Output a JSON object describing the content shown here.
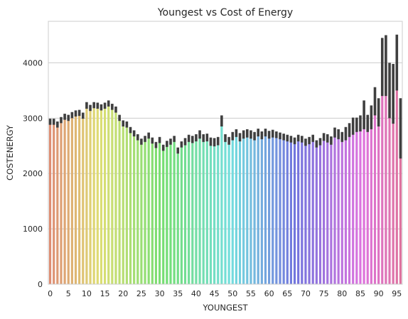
{
  "chart_data": {
    "type": "bar",
    "title": "Youngest vs Cost of Energy",
    "xlabel": "YOUNGEST",
    "ylabel": "COSTENERGY",
    "categories": [
      0,
      1,
      2,
      3,
      4,
      5,
      6,
      7,
      8,
      9,
      10,
      11,
      12,
      13,
      14,
      15,
      16,
      17,
      18,
      19,
      20,
      21,
      22,
      23,
      24,
      25,
      26,
      27,
      28,
      29,
      30,
      31,
      32,
      33,
      34,
      35,
      36,
      37,
      38,
      39,
      40,
      41,
      42,
      43,
      44,
      45,
      46,
      47,
      48,
      49,
      50,
      51,
      52,
      53,
      54,
      55,
      56,
      57,
      58,
      59,
      60,
      61,
      62,
      63,
      64,
      65,
      66,
      67,
      68,
      69,
      70,
      71,
      72,
      73,
      74,
      75,
      76,
      77,
      78,
      79,
      80,
      81,
      82,
      83,
      84,
      85,
      86,
      87,
      88,
      89,
      90,
      91,
      92,
      93,
      94,
      95,
      96
    ],
    "x_tick_labels": [
      "0",
      "5",
      "10",
      "15",
      "20",
      "25",
      "30",
      "35",
      "40",
      "45",
      "50",
      "55",
      "60",
      "65",
      "70",
      "75",
      "80",
      "85",
      "90",
      "95"
    ],
    "values": [
      2930,
      2930,
      2880,
      2960,
      3020,
      3000,
      3050,
      3080,
      3090,
      3040,
      3220,
      3180,
      3230,
      3220,
      3190,
      3220,
      3260,
      3200,
      3150,
      3000,
      2900,
      2880,
      2780,
      2720,
      2650,
      2570,
      2620,
      2680,
      2590,
      2510,
      2600,
      2460,
      2530,
      2570,
      2620,
      2410,
      2520,
      2570,
      2630,
      2610,
      2640,
      2700,
      2640,
      2650,
      2570,
      2560,
      2580,
      2950,
      2640,
      2590,
      2670,
      2730,
      2650,
      2700,
      2720,
      2700,
      2670,
      2740,
      2690,
      2740,
      2700,
      2720,
      2700,
      2680,
      2660,
      2640,
      2620,
      2590,
      2640,
      2620,
      2560,
      2590,
      2630,
      2530,
      2570,
      2660,
      2630,
      2590,
      2740,
      2710,
      2660,
      2720,
      2780,
      2860,
      2900,
      2910,
      3050,
      2900,
      3020,
      3300,
      3100,
      3920,
      3800,
      3500,
      3300,
      4100,
      2800
    ],
    "error_low": [
      2880,
      2880,
      2830,
      2910,
      2970,
      2950,
      3000,
      3030,
      3040,
      2990,
      3170,
      3130,
      3180,
      3170,
      3140,
      3170,
      3210,
      3150,
      3100,
      2950,
      2850,
      2830,
      2730,
      2670,
      2600,
      2520,
      2570,
      2630,
      2540,
      2460,
      2550,
      2410,
      2480,
      2520,
      2570,
      2360,
      2470,
      2510,
      2570,
      2550,
      2580,
      2630,
      2570,
      2580,
      2500,
      2490,
      2510,
      2850,
      2570,
      2520,
      2600,
      2660,
      2580,
      2630,
      2650,
      2630,
      2600,
      2670,
      2620,
      2670,
      2630,
      2650,
      2640,
      2620,
      2600,
      2580,
      2560,
      2530,
      2580,
      2560,
      2500,
      2530,
      2570,
      2470,
      2510,
      2590,
      2560,
      2520,
      2650,
      2620,
      2570,
      2600,
      2660,
      2700,
      2750,
      2760,
      2800,
      2750,
      2800,
      3050,
      2850,
      3400,
      3400,
      3000,
      2900,
      3500,
      2270
    ],
    "error_high": [
      2990,
      2990,
      2940,
      3020,
      3080,
      3060,
      3110,
      3140,
      3150,
      3100,
      3290,
      3240,
      3290,
      3280,
      3250,
      3280,
      3320,
      3260,
      3210,
      3060,
      2960,
      2940,
      2840,
      2780,
      2710,
      2630,
      2680,
      2740,
      2650,
      2570,
      2660,
      2520,
      2590,
      2630,
      2680,
      2470,
      2580,
      2640,
      2700,
      2680,
      2710,
      2780,
      2710,
      2720,
      2650,
      2640,
      2660,
      3050,
      2710,
      2660,
      2750,
      2800,
      2730,
      2780,
      2800,
      2780,
      2750,
      2810,
      2760,
      2810,
      2770,
      2790,
      2760,
      2740,
      2720,
      2700,
      2680,
      2650,
      2700,
      2680,
      2630,
      2660,
      2700,
      2600,
      2640,
      2730,
      2710,
      2670,
      2830,
      2800,
      2750,
      2840,
      2910,
      3010,
      3010,
      3050,
      3320,
      3060,
      3230,
      3560,
      3360,
      4450,
      4500,
      4000,
      3980,
      4510,
      3360
    ],
    "ylim": [
      0,
      4750
    ],
    "y_ticks": [
      0,
      1000,
      2000,
      3000,
      4000
    ],
    "y_tick_labels": [
      "0",
      "1000",
      "2000",
      "3000",
      "4000"
    ],
    "grid": "horizontal",
    "error_bar_color": "#3f3f3f",
    "grid_color": "#cccccc",
    "palette": "husl-rainbow"
  }
}
